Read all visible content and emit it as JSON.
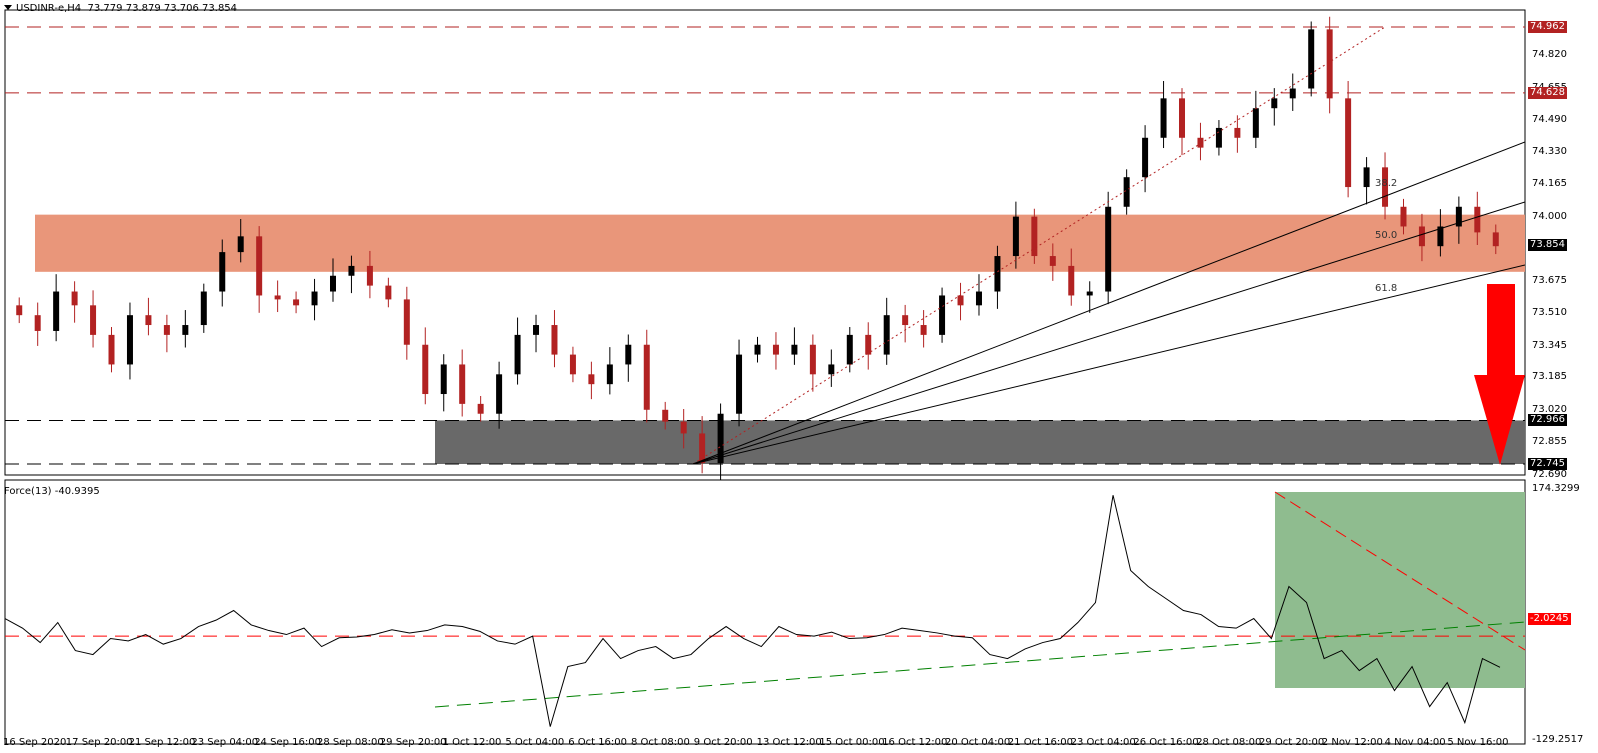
{
  "header": {
    "symbol": "USDINR-e,H4",
    "ohlc": "73.779 73.879 73.706 73.854",
    "menu_icon": "triangle-down-icon"
  },
  "indicator": {
    "title": "Force(13) -40.9395"
  },
  "colors": {
    "bull": "#000000",
    "bear": "#b22222",
    "resistance_zone": "#e9967a",
    "support_zone": "#696969",
    "indicator_zone": "#8fbc8f",
    "arrow": "#ff0000",
    "level_line": "#b22222",
    "force_zero": "#ff0000",
    "force_trend_up": "#008000"
  },
  "price_axis": {
    "ticks": [
      "74.820",
      "74.655",
      "74.490",
      "74.330",
      "74.165",
      "74.000",
      "73.675",
      "73.510",
      "73.345",
      "73.185",
      "73.020",
      "72.855",
      "72.690"
    ],
    "tags": [
      {
        "value": "74.962",
        "bg": "#b22222"
      },
      {
        "value": "74.628",
        "bg": "#b22222"
      },
      {
        "value": "73.854",
        "bg": "#000000"
      },
      {
        "value": "72.966",
        "bg": "#000000"
      },
      {
        "value": "72.745",
        "bg": "#000000"
      }
    ]
  },
  "indicator_axis": {
    "top": "174.3299",
    "bottom": "-129.2517",
    "tag": "-2.0245"
  },
  "fib_labels": [
    "38.2",
    "50.0",
    "61.8"
  ],
  "time_axis": [
    "16 Sep 2020",
    "17 Sep 20:00",
    "21 Sep 12:00",
    "23 Sep 04:00",
    "24 Sep 16:00",
    "28 Sep 08:00",
    "29 Sep 20:00",
    "1 Oct 12:00",
    "5 Oct 04:00",
    "6 Oct 16:00",
    "8 Oct 08:00",
    "9 Oct 20:00",
    "13 Oct 12:00",
    "15 Oct 00:00",
    "16 Oct 12:00",
    "20 Oct 04:00",
    "21 Oct 16:00",
    "23 Oct 04:00",
    "26 Oct 16:00",
    "28 Oct 08:00",
    "29 Oct 20:00",
    "2 Nov 12:00",
    "4 Nov 04:00",
    "5 Nov 16:00"
  ],
  "chart_data": [
    {
      "type": "candlestick",
      "title": "USDINR-e,H4  73.779 73.879 73.706 73.854",
      "ylim": [
        72.69,
        75.0
      ],
      "x": [
        "16 Sep 2020",
        "17 Sep 20:00",
        "21 Sep 12:00",
        "23 Sep 04:00",
        "24 Sep 16:00",
        "28 Sep 08:00",
        "29 Sep 20:00",
        "1 Oct 12:00",
        "5 Oct 04:00",
        "6 Oct 16:00",
        "8 Oct 08:00",
        "9 Oct 20:00",
        "13 Oct 12:00",
        "15 Oct 00:00",
        "16 Oct 12:00",
        "20 Oct 04:00",
        "21 Oct 16:00",
        "23 Oct 04:00",
        "26 Oct 16:00",
        "28 Oct 08:00",
        "29 Oct 20:00",
        "2 Nov 12:00",
        "4 Nov 04:00",
        "5 Nov 16:00"
      ],
      "last_ohlc": {
        "open": 73.779,
        "high": 73.879,
        "low": 73.706,
        "close": 73.854
      },
      "levels": [
        {
          "name": "resistance",
          "value": 74.962,
          "style": "dashed-red"
        },
        {
          "name": "resistance",
          "value": 74.628,
          "style": "dashed-red"
        },
        {
          "name": "support",
          "value": 72.966,
          "style": "dashed-black"
        },
        {
          "name": "support",
          "value": 72.745,
          "style": "dashed-black"
        }
      ],
      "zones": [
        {
          "name": "resistance-zone",
          "from": 73.72,
          "to": 74.01,
          "color": "#e9967a"
        },
        {
          "name": "support-zone",
          "from": 72.745,
          "to": 72.966,
          "color": "#696969"
        }
      ],
      "fib_fan": {
        "from": 72.745,
        "to": 74.962,
        "levels": [
          38.2,
          50.0,
          61.8
        ]
      },
      "annotation": "Red down arrow targeting 72.745 support",
      "closes": [
        73.5,
        73.42,
        73.62,
        73.55,
        73.4,
        73.25,
        73.5,
        73.45,
        73.4,
        73.45,
        73.62,
        73.82,
        73.9,
        73.6,
        73.58,
        73.55,
        73.62,
        73.7,
        73.75,
        73.65,
        73.58,
        73.35,
        73.1,
        73.25,
        73.05,
        73.0,
        73.2,
        73.4,
        73.45,
        73.3,
        73.2,
        73.15,
        73.25,
        73.35,
        73.02,
        72.96,
        72.9,
        72.75,
        73.0,
        73.3,
        73.35,
        73.3,
        73.35,
        73.2,
        73.25,
        73.4,
        73.3,
        73.5,
        73.45,
        73.4,
        73.6,
        73.55,
        73.62,
        73.8,
        74.0,
        73.8,
        73.75,
        73.6,
        73.62,
        74.05,
        74.2,
        74.4,
        74.6,
        74.4,
        74.35,
        74.45,
        74.4,
        74.55,
        74.6,
        74.65,
        74.95,
        74.6,
        74.15,
        74.25,
        74.05,
        73.95,
        73.85,
        73.95,
        74.05,
        73.92,
        73.85
      ]
    },
    {
      "type": "line",
      "title": "Force(13) -40.9395",
      "ylim": [
        -129.2517,
        174.3299
      ],
      "zero_line": -2.0245,
      "values": [
        20,
        8,
        -10,
        15,
        -20,
        -25,
        -5,
        -8,
        0,
        -12,
        -5,
        10,
        18,
        30,
        12,
        5,
        0,
        8,
        -15,
        -4,
        -3,
        0,
        6,
        2,
        5,
        12,
        10,
        4,
        -8,
        -12,
        -2,
        -115,
        -40,
        -35,
        -5,
        -30,
        -20,
        -15,
        -30,
        -25,
        -5,
        10,
        -5,
        -15,
        10,
        0,
        -2,
        3,
        -5,
        -4,
        0,
        8,
        5,
        2,
        -2,
        -4,
        -25,
        -30,
        -18,
        -10,
        -5,
        15,
        40,
        174,
        80,
        60,
        45,
        30,
        25,
        10,
        8,
        20,
        -5,
        60,
        40,
        -30,
        -20,
        -45,
        -30,
        -70,
        -40,
        -90,
        -60,
        -110,
        -30,
        -41
      ]
    }
  ]
}
